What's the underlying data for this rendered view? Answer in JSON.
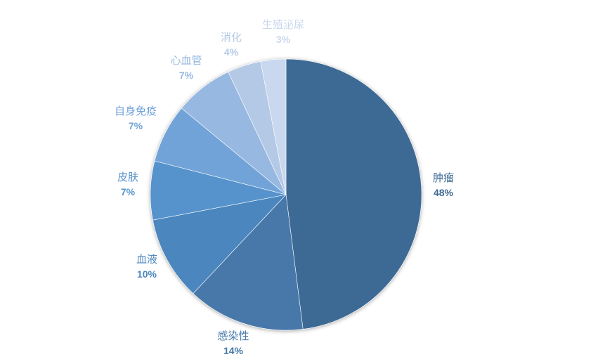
{
  "chart_data": {
    "type": "pie",
    "title": "",
    "start_angle": "12 o'clock",
    "direction": "clockwise",
    "legend": "none",
    "categories": [
      "肿瘤",
      "感染性",
      "血液",
      "皮肤",
      "自身免疫",
      "心血管",
      "消化",
      "生殖泌尿"
    ],
    "values": [
      48,
      14,
      10,
      7,
      7,
      7,
      4,
      3
    ],
    "value_labels": [
      "48%",
      "14%",
      "10%",
      "7%",
      "7%",
      "7%",
      "4%",
      "3%"
    ],
    "colors": [
      "#3e6a95",
      "#4678a9",
      "#4c86be",
      "#5693cd",
      "#72a3d8",
      "#97b8e0",
      "#b4c9e6",
      "#c9d8ee"
    ],
    "label_colors": [
      "#3e6a95",
      "#4678a9",
      "#4c86be",
      "#5693cd",
      "#72a3d8",
      "#97b8e0",
      "#b4c9e6",
      "#c9d8ee"
    ]
  }
}
